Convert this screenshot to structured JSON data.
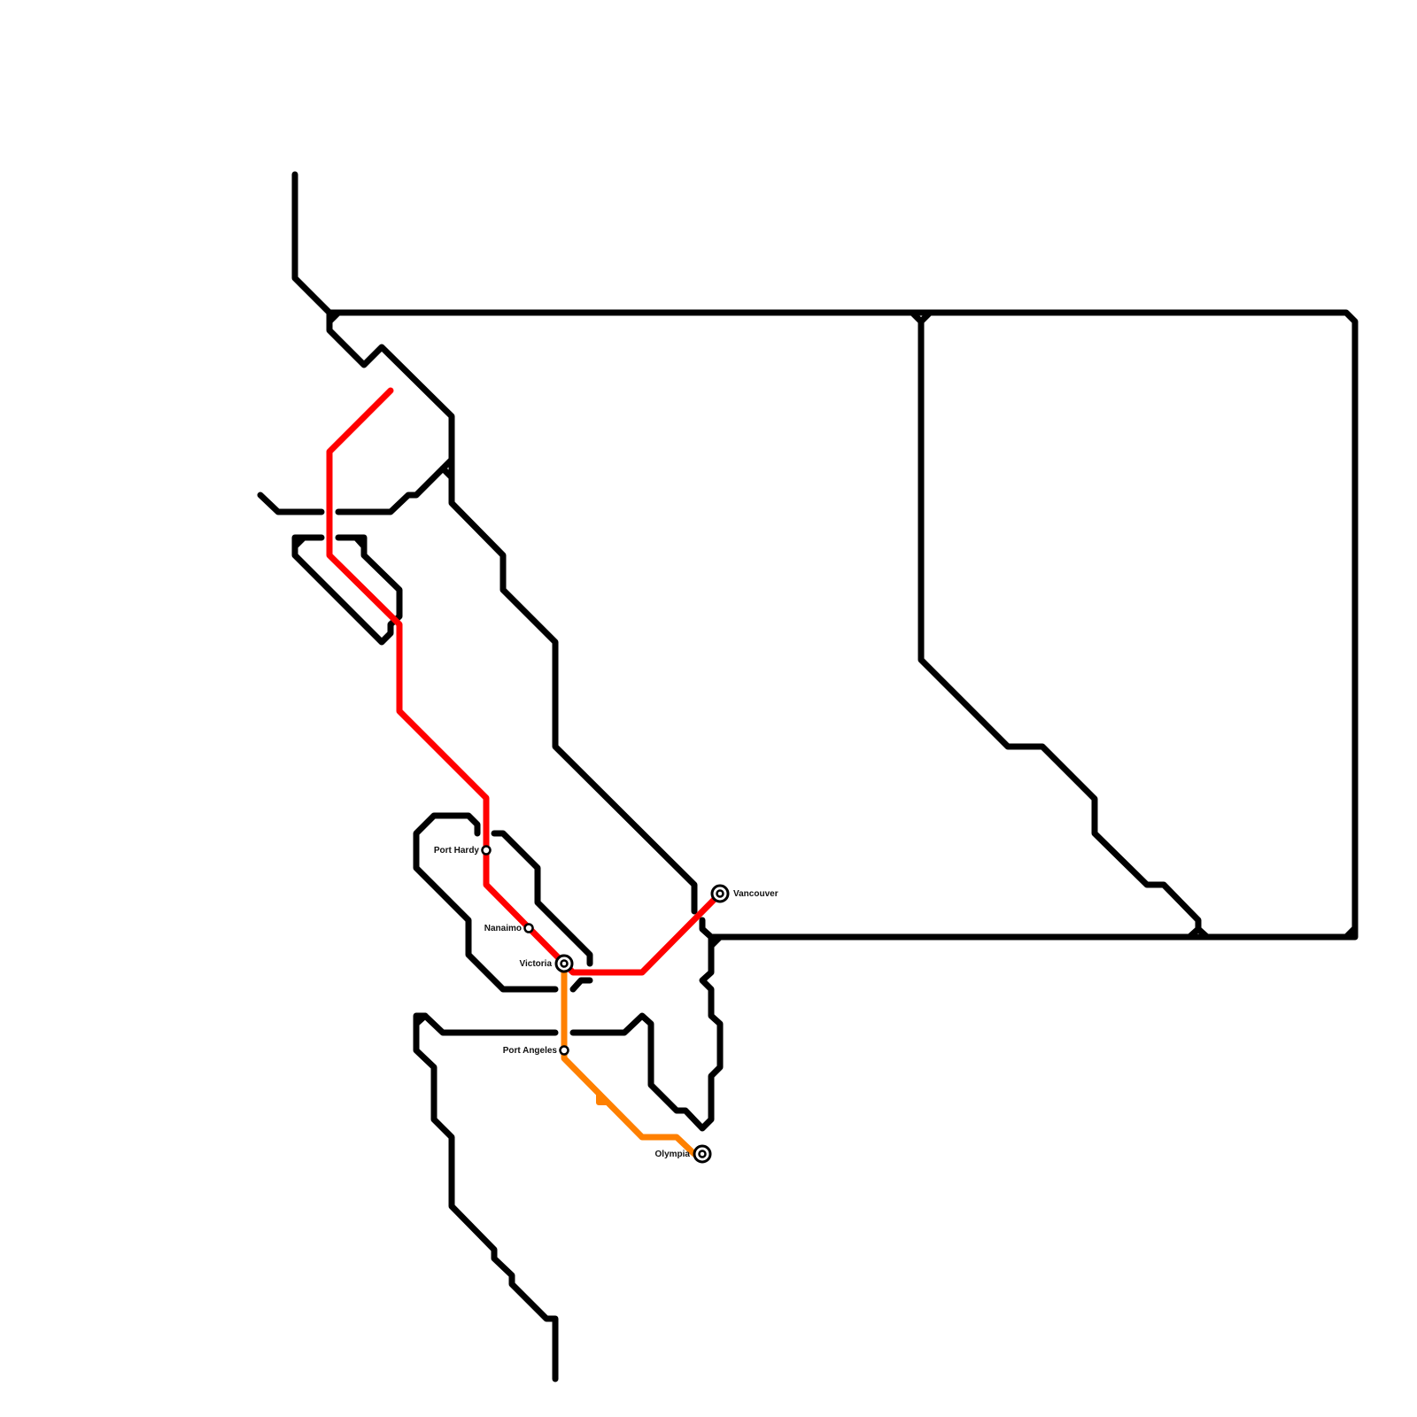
{
  "colors": {
    "coast": "#000000",
    "red_line": "#ff0000",
    "orange_line": "#ff8000",
    "background": "#ffffff"
  },
  "stations": [
    {
      "name": "Port Hardy",
      "type": "stop"
    },
    {
      "name": "Nanaimo",
      "type": "stop"
    },
    {
      "name": "Victoria",
      "type": "interchange"
    },
    {
      "name": "Vancouver",
      "type": "interchange"
    },
    {
      "name": "Port Angeles",
      "type": "stop"
    },
    {
      "name": "Olympia",
      "type": "interchange"
    }
  ]
}
